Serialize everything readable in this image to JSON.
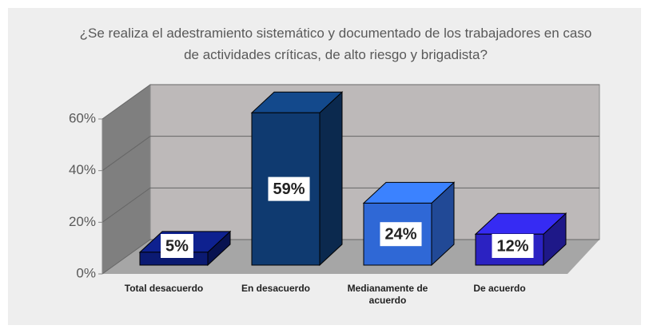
{
  "chart_data": {
    "type": "bar3d",
    "title": "¿Se realiza el adestramiento sistemático y documentado de los trabajadores en caso de actividades críticas, de alto riesgo y brigadista?",
    "categories": [
      "Total desacuerdo",
      "En desacuerdo",
      "Medianamente de acuerdo",
      "De acuerdo"
    ],
    "values": [
      5,
      59,
      24,
      12
    ],
    "value_labels": [
      "5%",
      "59%",
      "24%",
      "12%"
    ],
    "colors": [
      "#0b1a72",
      "#0f3a70",
      "#2f68d6",
      "#2b22c2"
    ],
    "ylim": [
      0,
      60
    ],
    "yticks": [
      {
        "value": 0,
        "label": "0%"
      },
      {
        "value": 20,
        "label": "20%"
      },
      {
        "value": 40,
        "label": "40%"
      },
      {
        "value": 60,
        "label": "60%"
      }
    ],
    "grid": true
  }
}
